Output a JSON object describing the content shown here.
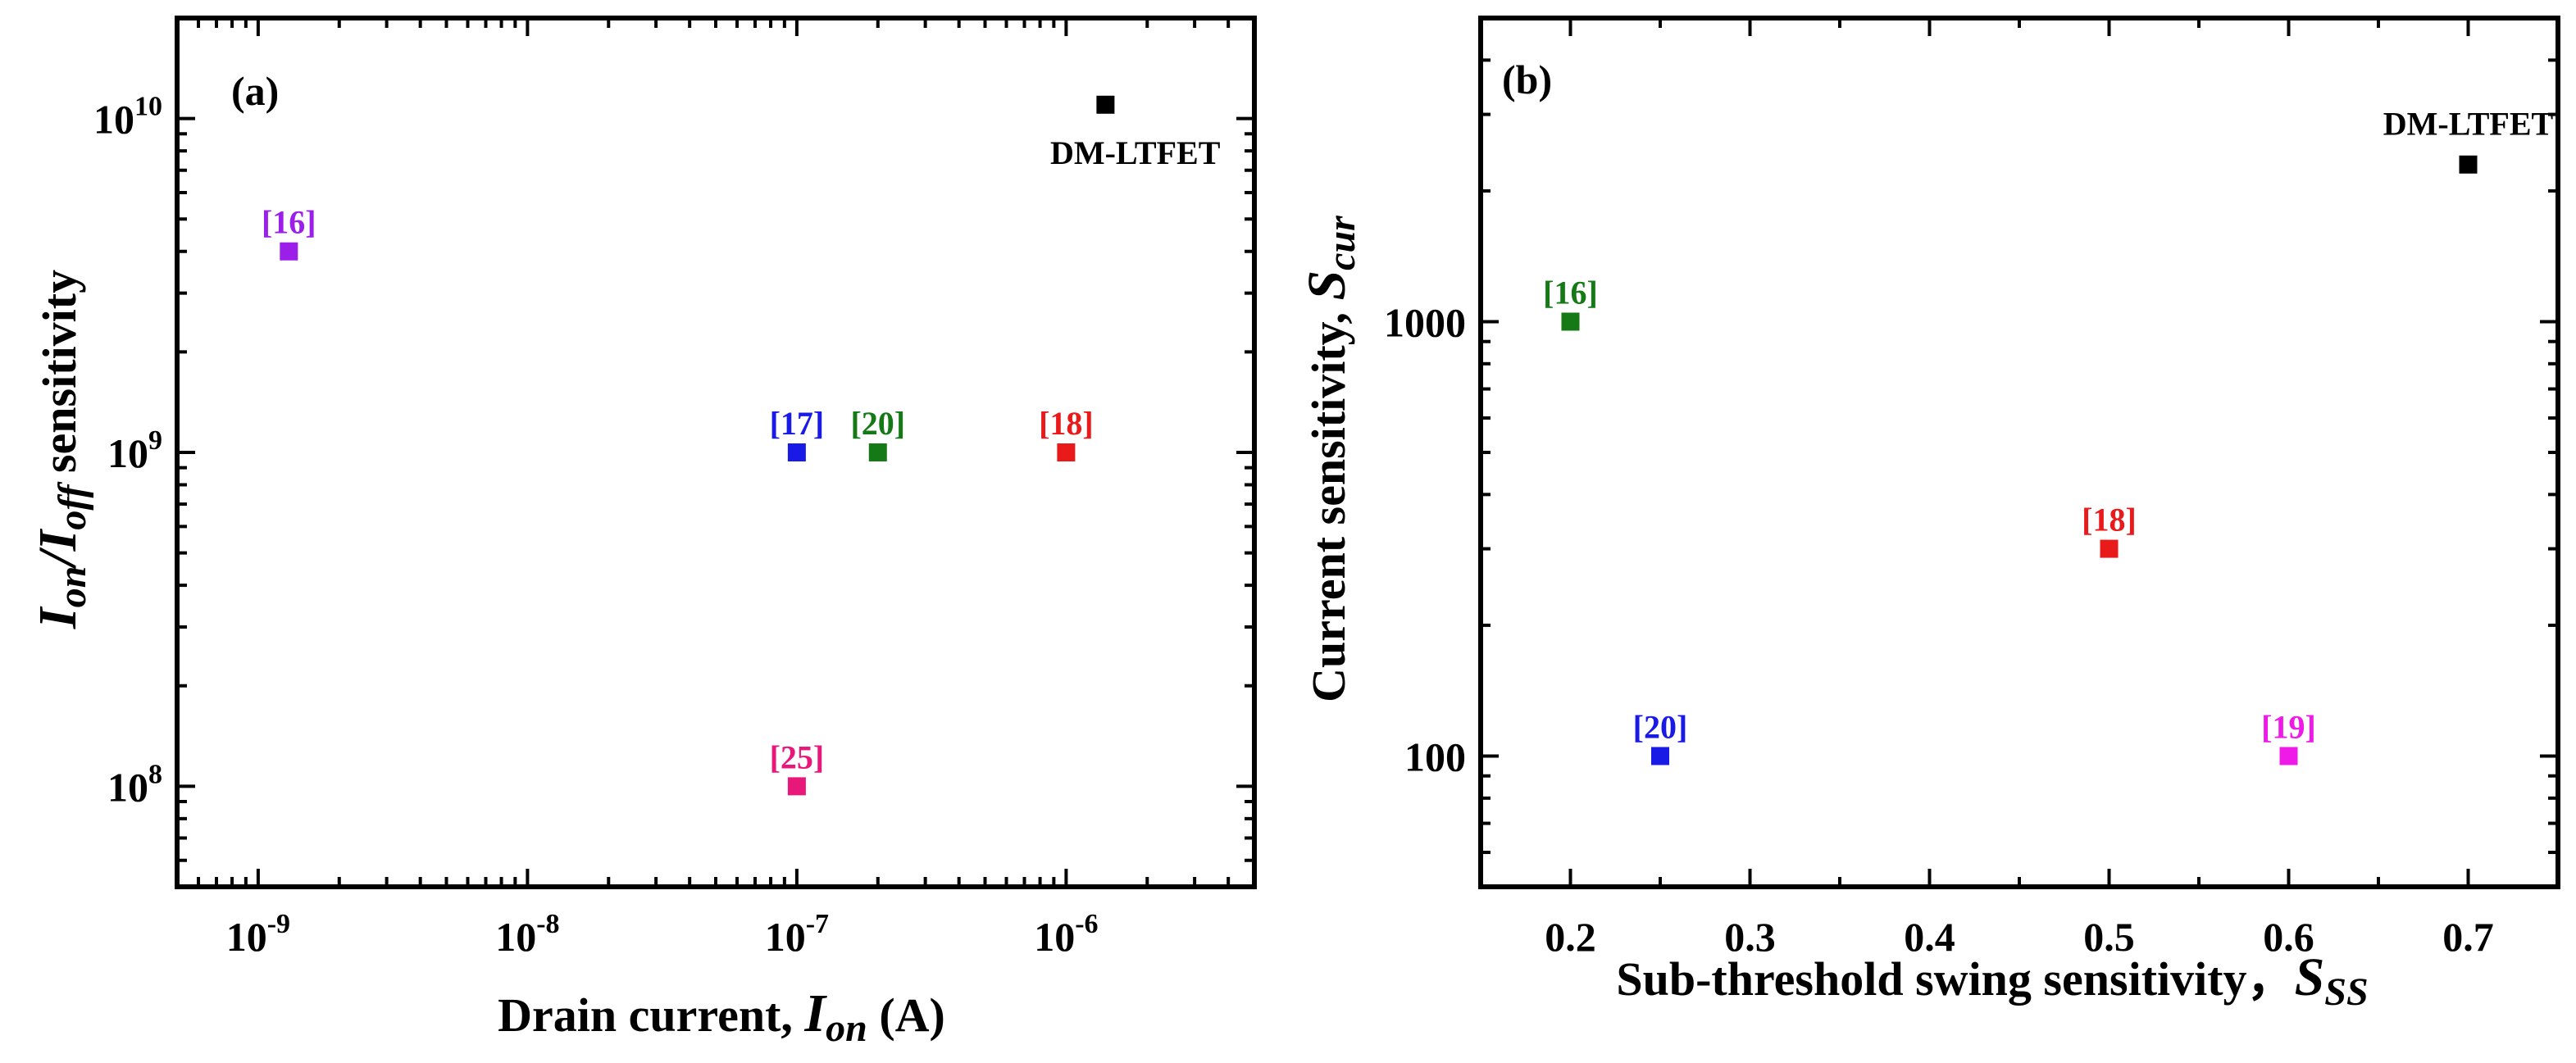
{
  "chart_data": [
    {
      "type": "scatter",
      "panel_label": "(a)",
      "xscale": "log",
      "yscale": "log",
      "xlim": [
        5e-10,
        5e-06
      ],
      "ylim": [
        50000000.0,
        20000000000.0
      ],
      "xlabel_prefix": "Drain current, ",
      "xlabel_var": "I",
      "xlabel_sub": "on",
      "xlabel_suffix": " (A)",
      "ylabel_var1": "I",
      "ylabel_sub1": "on",
      "ylabel_slash": "/",
      "ylabel_var2": "I",
      "ylabel_sub2": "off",
      "ylabel_suffix": " sensitivity",
      "xticks": [
        {
          "value": 1e-09,
          "base": "10",
          "exp": "-9"
        },
        {
          "value": 1e-08,
          "base": "10",
          "exp": "-8"
        },
        {
          "value": 1e-07,
          "base": "10",
          "exp": "-7"
        },
        {
          "value": 1e-06,
          "base": "10",
          "exp": "-6"
        }
      ],
      "yticks": [
        {
          "value": 100000000.0,
          "base": "10",
          "exp": "8"
        },
        {
          "value": 1000000000.0,
          "base": "10",
          "exp": "9"
        },
        {
          "value": 10000000000.0,
          "base": "10",
          "exp": "10"
        }
      ],
      "points": [
        {
          "label": "[16]",
          "x": 1.3e-09,
          "y": 4000000000.0,
          "color": "#9B1FE8"
        },
        {
          "label": "[17]",
          "x": 1e-07,
          "y": 1000000000.0,
          "color": "#1A1AE6"
        },
        {
          "label": "[20]",
          "x": 2e-07,
          "y": 1000000000.0,
          "color": "#157A15"
        },
        {
          "label": "[18]",
          "x": 1e-06,
          "y": 1000000000.0,
          "color": "#E81A1A"
        },
        {
          "label": "[25]",
          "x": 1e-07,
          "y": 100000000.0,
          "color": "#E8177A"
        },
        {
          "label": "DM-LTFET",
          "x": 1.4e-06,
          "y": 11000000000.0,
          "color": "#000000"
        }
      ]
    },
    {
      "type": "scatter",
      "panel_label": "(b)",
      "xscale": "linear",
      "yscale": "log",
      "xlim": [
        0.15,
        0.75
      ],
      "ylim": [
        50,
        5000
      ],
      "xlabel_prefix": "Sub-threshold swing sensitivity，",
      "xlabel_var": "S",
      "xlabel_sub": "SS",
      "ylabel_prefix": "Current sensitivity, ",
      "ylabel_var": "S",
      "ylabel_sub": "cur",
      "xticks": [
        {
          "value": 0.2,
          "text": "0.2"
        },
        {
          "value": 0.3,
          "text": "0.3"
        },
        {
          "value": 0.4,
          "text": "0.4"
        },
        {
          "value": 0.5,
          "text": "0.5"
        },
        {
          "value": 0.6,
          "text": "0.6"
        },
        {
          "value": 0.7,
          "text": "0.7"
        }
      ],
      "yticks": [
        {
          "value": 100,
          "text": "100"
        },
        {
          "value": 1000,
          "text": "1000"
        }
      ],
      "points": [
        {
          "label": "[16]",
          "x": 0.2,
          "y": 1000,
          "color": "#157A15"
        },
        {
          "label": "[20]",
          "x": 0.25,
          "y": 100,
          "color": "#1A1AE6"
        },
        {
          "label": "[18]",
          "x": 0.5,
          "y": 300,
          "color": "#E81A1A"
        },
        {
          "label": "[19]",
          "x": 0.6,
          "y": 100,
          "color": "#F01AE8"
        },
        {
          "label": "DM-LTFET",
          "x": 0.7,
          "y": 2300,
          "color": "#000000"
        }
      ]
    }
  ]
}
